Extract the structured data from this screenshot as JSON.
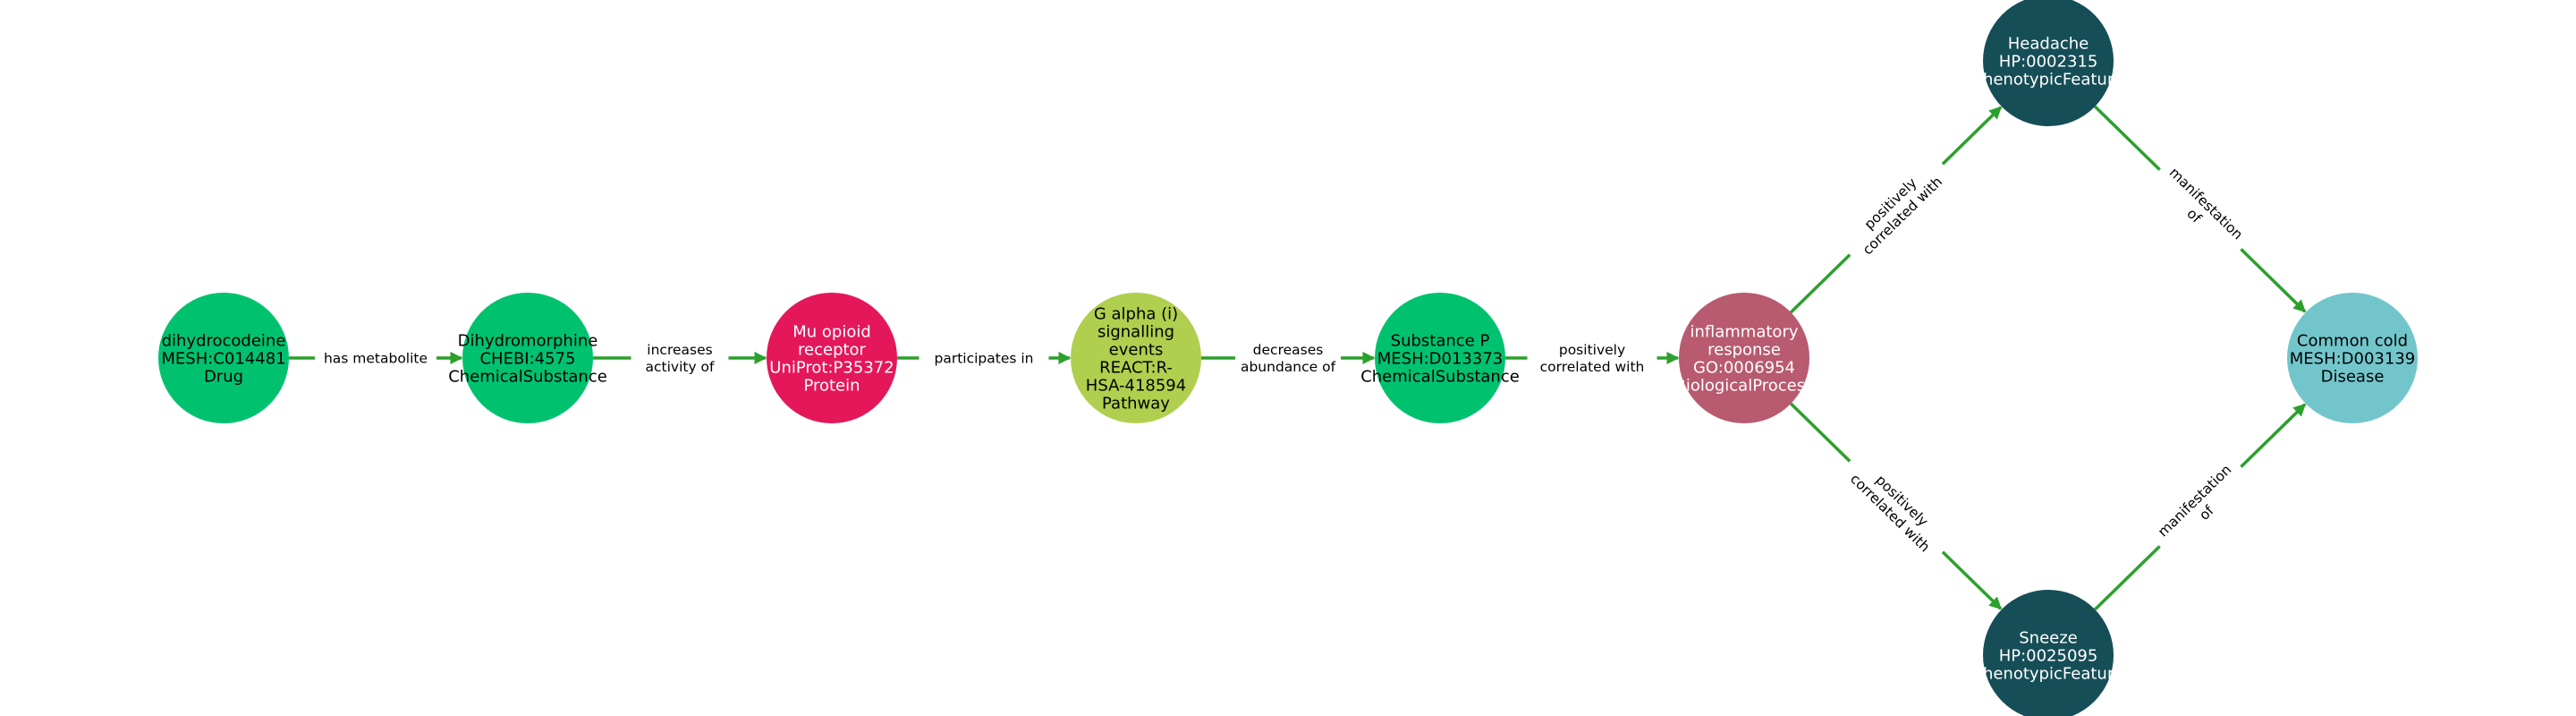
{
  "colors": {
    "edge": "#2ca02c",
    "drug": "#00c26e",
    "chemical": "#00c26e",
    "protein": "#e5175b",
    "pathway": "#b0cf4f",
    "process": "#b85a70",
    "phenotype": "#164e57",
    "disease": "#72c6cb"
  },
  "nodes": [
    {
      "id": "dihydrocodeine",
      "lines": [
        "dihydrocodeine",
        "MESH:C014481",
        "Drug"
      ],
      "color_key": "drug",
      "text_color": "#000000"
    },
    {
      "id": "dihydromorphine",
      "lines": [
        "Dihydromorphine",
        "CHEBI:4575",
        "ChemicalSubstance"
      ],
      "color_key": "chemical",
      "text_color": "#000000"
    },
    {
      "id": "mu-opioid-receptor",
      "lines": [
        "Mu opioid",
        "receptor",
        "UniProt:P35372",
        "Protein"
      ],
      "color_key": "protein",
      "text_color": "#ffffff"
    },
    {
      "id": "g-alpha-i",
      "lines": [
        "G alpha (i)",
        "signalling",
        "events",
        "REACT:R-",
        "HSA-418594",
        "Pathway"
      ],
      "color_key": "pathway",
      "text_color": "#000000"
    },
    {
      "id": "substance-p",
      "lines": [
        "Substance P",
        "MESH:D013373",
        "ChemicalSubstance"
      ],
      "color_key": "chemical",
      "text_color": "#000000"
    },
    {
      "id": "inflammatory-response",
      "lines": [
        "inflammatory",
        "response",
        "GO:0006954",
        "BiologicalProcess"
      ],
      "color_key": "process",
      "text_color": "#ffffff"
    },
    {
      "id": "headache",
      "lines": [
        "Headache",
        "HP:0002315",
        "PhenotypicFeature"
      ],
      "color_key": "phenotype",
      "text_color": "#ffffff"
    },
    {
      "id": "sneeze",
      "lines": [
        "Sneeze",
        "HP:0025095",
        "PhenotypicFeature"
      ],
      "color_key": "phenotype",
      "text_color": "#ffffff"
    },
    {
      "id": "common-cold",
      "lines": [
        "Common cold",
        "MESH:D003139",
        "Disease"
      ],
      "color_key": "disease",
      "text_color": "#000000"
    }
  ],
  "edges": [
    {
      "from": "dihydrocodeine",
      "to": "dihydromorphine",
      "label_lines": [
        "has metabolite"
      ]
    },
    {
      "from": "dihydromorphine",
      "to": "mu-opioid-receptor",
      "label_lines": [
        "increases",
        "activity of"
      ]
    },
    {
      "from": "mu-opioid-receptor",
      "to": "g-alpha-i",
      "label_lines": [
        "participates in"
      ]
    },
    {
      "from": "g-alpha-i",
      "to": "substance-p",
      "label_lines": [
        "decreases",
        "abundance of"
      ]
    },
    {
      "from": "substance-p",
      "to": "inflammatory-response",
      "label_lines": [
        "positively",
        "correlated with"
      ]
    },
    {
      "from": "inflammatory-response",
      "to": "headache",
      "label_lines": [
        "positively",
        "correlated with"
      ]
    },
    {
      "from": "inflammatory-response",
      "to": "sneeze",
      "label_lines": [
        "positively",
        "correlated with"
      ]
    },
    {
      "from": "headache",
      "to": "common-cold",
      "label_lines": [
        "manifestation",
        "of"
      ]
    },
    {
      "from": "sneeze",
      "to": "common-cold",
      "label_lines": [
        "manifestation",
        "of"
      ]
    }
  ]
}
